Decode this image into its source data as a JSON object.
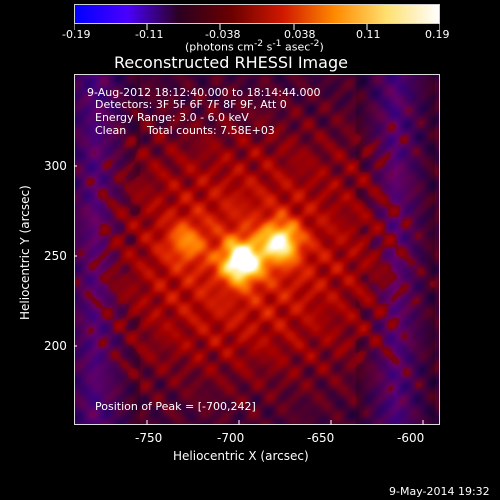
{
  "colorbar": {
    "ticks": [
      "-0.19",
      "-0.11",
      "-0.038",
      "0.038",
      "0.11",
      "0.19"
    ],
    "units_html": "(photons cm<sup>-2</sup> s<sup>-1</sup> asec<sup>-2</sup>)",
    "colors": [
      "#0000ff",
      "#4b00ff",
      "#2b0020",
      "#6a0000",
      "#d01800",
      "#ff8a00",
      "#ffe070",
      "#ffffff"
    ]
  },
  "title": "Reconstructed RHESSI Image",
  "overlay": {
    "line1": "9-Aug-2012 18:12:40.000 to 18:14:44.000",
    "line2": "Detectors: 3F 5F 6F 7F 8F 9F, Att 0",
    "line3": "Energy Range: 3.0 - 6.0 keV",
    "line4a": "Clean",
    "line4b": "Total counts: 7.58E+03",
    "peak_label": "Position of Peak = [-700,242]"
  },
  "axes": {
    "x_label": "Heliocentric X (arcsec)",
    "y_label": "Heliocentric Y (arcsec)",
    "x_ticks": [
      {
        "value": -750,
        "label": "-750"
      },
      {
        "value": -700,
        "label": "-700"
      },
      {
        "value": -650,
        "label": "-650"
      },
      {
        "value": -600,
        "label": "-600"
      }
    ],
    "y_ticks": [
      {
        "value": 300,
        "label": "300"
      },
      {
        "value": 250,
        "label": "250"
      },
      {
        "value": 200,
        "label": "200"
      }
    ],
    "x_range": [
      -790,
      -590
    ],
    "y_range": [
      150,
      350
    ]
  },
  "footer": {
    "timestamp": "9-May-2014 19:32"
  },
  "image": {
    "peak": [
      -700,
      242
    ],
    "sources": [
      {
        "x": -699,
        "y": 244,
        "intensity": 1.0
      },
      {
        "x": -678,
        "y": 255,
        "intensity": 0.78
      },
      {
        "x": -730,
        "y": 255,
        "intensity": 0.38
      }
    ]
  }
}
